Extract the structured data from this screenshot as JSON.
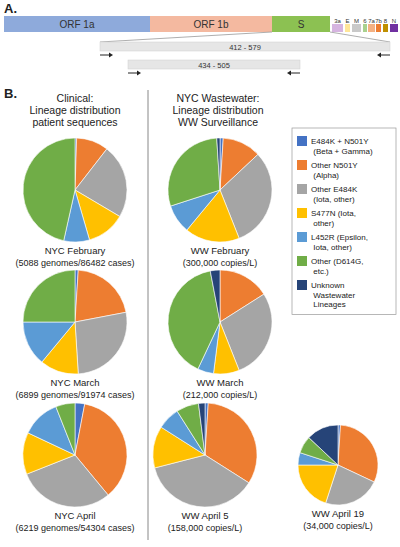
{
  "panel_a": {
    "label": "A.",
    "genes": [
      {
        "name": "ORF 1a",
        "color": "#8eaadb"
      },
      {
        "name": "ORF 1b",
        "color": "#f4b9a0"
      },
      {
        "name": "S",
        "color": "#8cc152"
      },
      {
        "name": "3a",
        "color": "#d6b4e0"
      },
      {
        "name": "E",
        "color": "#ffe699"
      },
      {
        "name": "M",
        "color": "#c9c9c9"
      },
      {
        "name": "6",
        "color": "#a9d18e"
      },
      {
        "name": "7a",
        "color": "#f4b183"
      },
      {
        "name": "7b",
        "color": "#ed7d31"
      },
      {
        "name": "8",
        "color": "#bf9000"
      },
      {
        "name": "N",
        "color": "#7030a0"
      }
    ],
    "amplicons": [
      "412 - 579",
      "434 - 505"
    ]
  },
  "panel_b": {
    "label": "B.",
    "clinical_header": [
      "Clinical:",
      "Lineage distribution",
      "patient sequences"
    ],
    "wastewater_header": [
      "NYC Wastewater:",
      "Lineage distribution",
      "WW Surveillance"
    ]
  },
  "chart_data": [
    {
      "type": "pie",
      "title": "NYC February",
      "subtitle": "(5088 genomes/86482 cases)",
      "categories": [
        "E484K + N501Y (Beta + Gamma)",
        "Other N501Y (Alpha)",
        "Other E484K (Iota, other)",
        "S477N (Iota, other)",
        "L452R (Epsilon, Iota, other)",
        "Other (D614G, etc.)",
        "Unknown Wastewater Lineages"
      ],
      "values": [
        0.5,
        10,
        23,
        12,
        8,
        46.5,
        0
      ],
      "colors": [
        "#4472c4",
        "#ed7d31",
        "#a5a5a5",
        "#ffc000",
        "#5b9bd5",
        "#70ad47",
        "#264478"
      ]
    },
    {
      "type": "pie",
      "title": "NYC March",
      "subtitle": "(6899 genomes/91974 cases)",
      "categories": [
        "E484K + N501Y (Beta + Gamma)",
        "Other N501Y (Alpha)",
        "Other E484K (Iota, other)",
        "S477N (Iota, other)",
        "L452R (Epsilon, Iota, other)",
        "Other (D614G, etc.)",
        "Unknown Wastewater Lineages"
      ],
      "values": [
        1,
        21,
        27,
        12,
        14,
        25,
        0
      ],
      "colors": [
        "#4472c4",
        "#ed7d31",
        "#a5a5a5",
        "#ffc000",
        "#5b9bd5",
        "#70ad47",
        "#264478"
      ]
    },
    {
      "type": "pie",
      "title": "NYC April",
      "subtitle": "(6219 genomes/54304 cases)",
      "categories": [
        "E484K + N501Y (Beta + Gamma)",
        "Other N501Y (Alpha)",
        "Other E484K (Iota, other)",
        "S477N (Iota, other)",
        "L452R (Epsilon, Iota, other)",
        "Other (D614G, etc.)",
        "Unknown Wastewater Lineages"
      ],
      "values": [
        3,
        36,
        30,
        13,
        12,
        6,
        0
      ],
      "colors": [
        "#4472c4",
        "#ed7d31",
        "#a5a5a5",
        "#ffc000",
        "#5b9bd5",
        "#70ad47",
        "#264478"
      ]
    },
    {
      "type": "pie",
      "title": "WW February",
      "subtitle": "(300,000 copies/L)",
      "categories": [
        "E484K + N501Y (Beta + Gamma)",
        "Other N501Y (Alpha)",
        "Other E484K (Iota, other)",
        "S477N (Iota, other)",
        "L452R (Epsilon, Iota, other)",
        "Other (D614G, etc.)",
        "Unknown Wastewater Lineages"
      ],
      "values": [
        1,
        12,
        31,
        17,
        9,
        29,
        1
      ],
      "colors": [
        "#4472c4",
        "#ed7d31",
        "#a5a5a5",
        "#ffc000",
        "#5b9bd5",
        "#70ad47",
        "#264478"
      ]
    },
    {
      "type": "pie",
      "title": "WW March",
      "subtitle": "(212,000 copies/L)",
      "categories": [
        "E484K + N501Y (Beta + Gamma)",
        "Other N501Y (Alpha)",
        "Other E484K (Iota, other)",
        "S477N (Iota, other)",
        "L452R (Epsilon, Iota, other)",
        "Other (D614G, etc.)",
        "Unknown Wastewater Lineages"
      ],
      "values": [
        0,
        16,
        28,
        8,
        5,
        40,
        3
      ],
      "colors": [
        "#4472c4",
        "#ed7d31",
        "#a5a5a5",
        "#ffc000",
        "#5b9bd5",
        "#70ad47",
        "#264478"
      ]
    },
    {
      "type": "pie",
      "title": "WW April 5",
      "subtitle": "(158,000 copies/L)",
      "categories": [
        "E484K + N501Y (Beta + Gamma)",
        "Other N501Y (Alpha)",
        "Other E484K (Iota, other)",
        "S477N (Iota, other)",
        "L452R (Epsilon, Iota, other)",
        "Other (D614G, etc.)",
        "Unknown Wastewater Lineages"
      ],
      "values": [
        1,
        33,
        37,
        13,
        7,
        7,
        2
      ],
      "colors": [
        "#4472c4",
        "#ed7d31",
        "#a5a5a5",
        "#ffc000",
        "#5b9bd5",
        "#70ad47",
        "#264478"
      ]
    },
    {
      "type": "pie",
      "title": "WW April 19",
      "subtitle": "(34,000 copies/L)",
      "categories": [
        "E484K + N501Y (Beta + Gamma)",
        "Other N501Y (Alpha)",
        "Other E484K (Iota, other)",
        "S477N (Iota, other)",
        "L452R (Epsilon, Iota, other)",
        "Other (D614G, etc.)",
        "Unknown Wastewater Lineages"
      ],
      "values": [
        1,
        31,
        23,
        20,
        5,
        7,
        13
      ],
      "colors": [
        "#4472c4",
        "#ed7d31",
        "#a5a5a5",
        "#ffc000",
        "#5b9bd5",
        "#70ad47",
        "#264478"
      ]
    }
  ]
}
